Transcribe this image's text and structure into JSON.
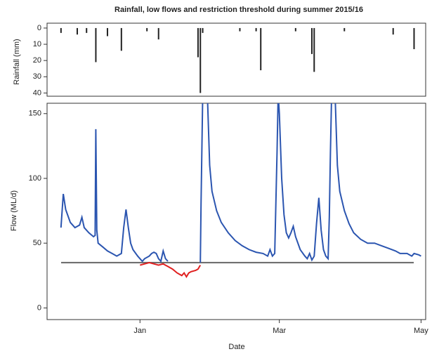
{
  "title": "Rainfall, low flows and restriction threshold during summer 2015/16",
  "chart_data": [
    {
      "type": "bar",
      "y_label": "Rainfall (mm)",
      "color": "#222222",
      "y_inverted": true,
      "x": [
        -34,
        -27,
        -23,
        -19,
        -14,
        -8,
        3,
        8,
        25,
        26,
        27,
        43,
        50,
        52,
        67,
        74,
        75,
        88,
        109,
        118
      ],
      "values": [
        3,
        4,
        3,
        21,
        5,
        14,
        2,
        7,
        18,
        40,
        3,
        2,
        2,
        26,
        2,
        16,
        27,
        2,
        4,
        13
      ],
      "xlim": [
        -40,
        123
      ],
      "ylim": [
        -3,
        42
      ],
      "yticks": [
        0,
        10,
        20,
        30,
        40
      ]
    },
    {
      "type": "line",
      "y_label": "Flow (ML/d)",
      "x_label": "Date",
      "threshold": 35,
      "threshold_color": "#666666",
      "series": [
        {
          "color": "#2b55b0",
          "x": [
            -34,
            -33,
            -32,
            -30,
            -28,
            -26,
            -25,
            -24,
            -22,
            -20,
            -19.3,
            -19,
            -18.6,
            -18,
            -16,
            -14,
            -12,
            -10,
            -8,
            -7,
            -6,
            -5,
            -4,
            -3,
            -1,
            0,
            1,
            2,
            4,
            5,
            6,
            7,
            8,
            9,
            10,
            11,
            12,
            13,
            26,
            26.3,
            27,
            29,
            30,
            31,
            33,
            35,
            38,
            41,
            44,
            47,
            50,
            53,
            55,
            56,
            57,
            58,
            58.5,
            59,
            59.5,
            60,
            61,
            62,
            63,
            64,
            65,
            66,
            67,
            69,
            71,
            72,
            73,
            74,
            75,
            76,
            77,
            78,
            79,
            80,
            81,
            81.5,
            82,
            82.5,
            84,
            85,
            86,
            88,
            90,
            92,
            95,
            98,
            101,
            104,
            107,
            110,
            112,
            115,
            117,
            118,
            120,
            121
          ],
          "values": [
            62,
            88,
            76,
            66,
            62,
            64,
            70,
            62,
            58,
            55,
            56,
            138,
            60,
            50,
            47,
            44,
            42,
            40,
            42,
            62,
            76,
            62,
            50,
            45,
            40,
            38,
            36,
            38,
            40,
            42,
            43,
            42,
            38,
            36,
            44,
            38,
            36,
            null,
            35,
            80,
            165,
            165,
            110,
            90,
            75,
            66,
            58,
            52,
            48,
            45,
            43,
            42,
            40,
            45,
            40,
            42,
            80,
            120,
            165,
            150,
            100,
            72,
            58,
            54,
            58,
            63,
            55,
            45,
            40,
            38,
            42,
            37,
            40,
            65,
            85,
            60,
            45,
            40,
            38,
            70,
            120,
            165,
            165,
            110,
            90,
            75,
            65,
            58,
            53,
            50,
            50,
            48,
            46,
            44,
            42,
            42,
            40,
            42,
            41,
            40
          ]
        },
        {
          "color": "#e02020",
          "x": [
            0,
            2,
            4,
            6,
            8,
            10,
            12,
            14,
            16,
            18,
            19,
            20,
            21,
            22,
            24,
            25,
            26
          ],
          "values": [
            33,
            34,
            35,
            34,
            33,
            34,
            32,
            30,
            27,
            25,
            27,
            24,
            27,
            28,
            29,
            30,
            33
          ]
        }
      ],
      "xlim": [
        -40,
        123
      ],
      "ylim": [
        -9,
        158
      ],
      "yticks": [
        0,
        50,
        100,
        150
      ],
      "xticks": [
        {
          "value": 0,
          "label": "Jan"
        },
        {
          "value": 60,
          "label": "Mar"
        },
        {
          "value": 121,
          "label": "May"
        }
      ]
    }
  ]
}
